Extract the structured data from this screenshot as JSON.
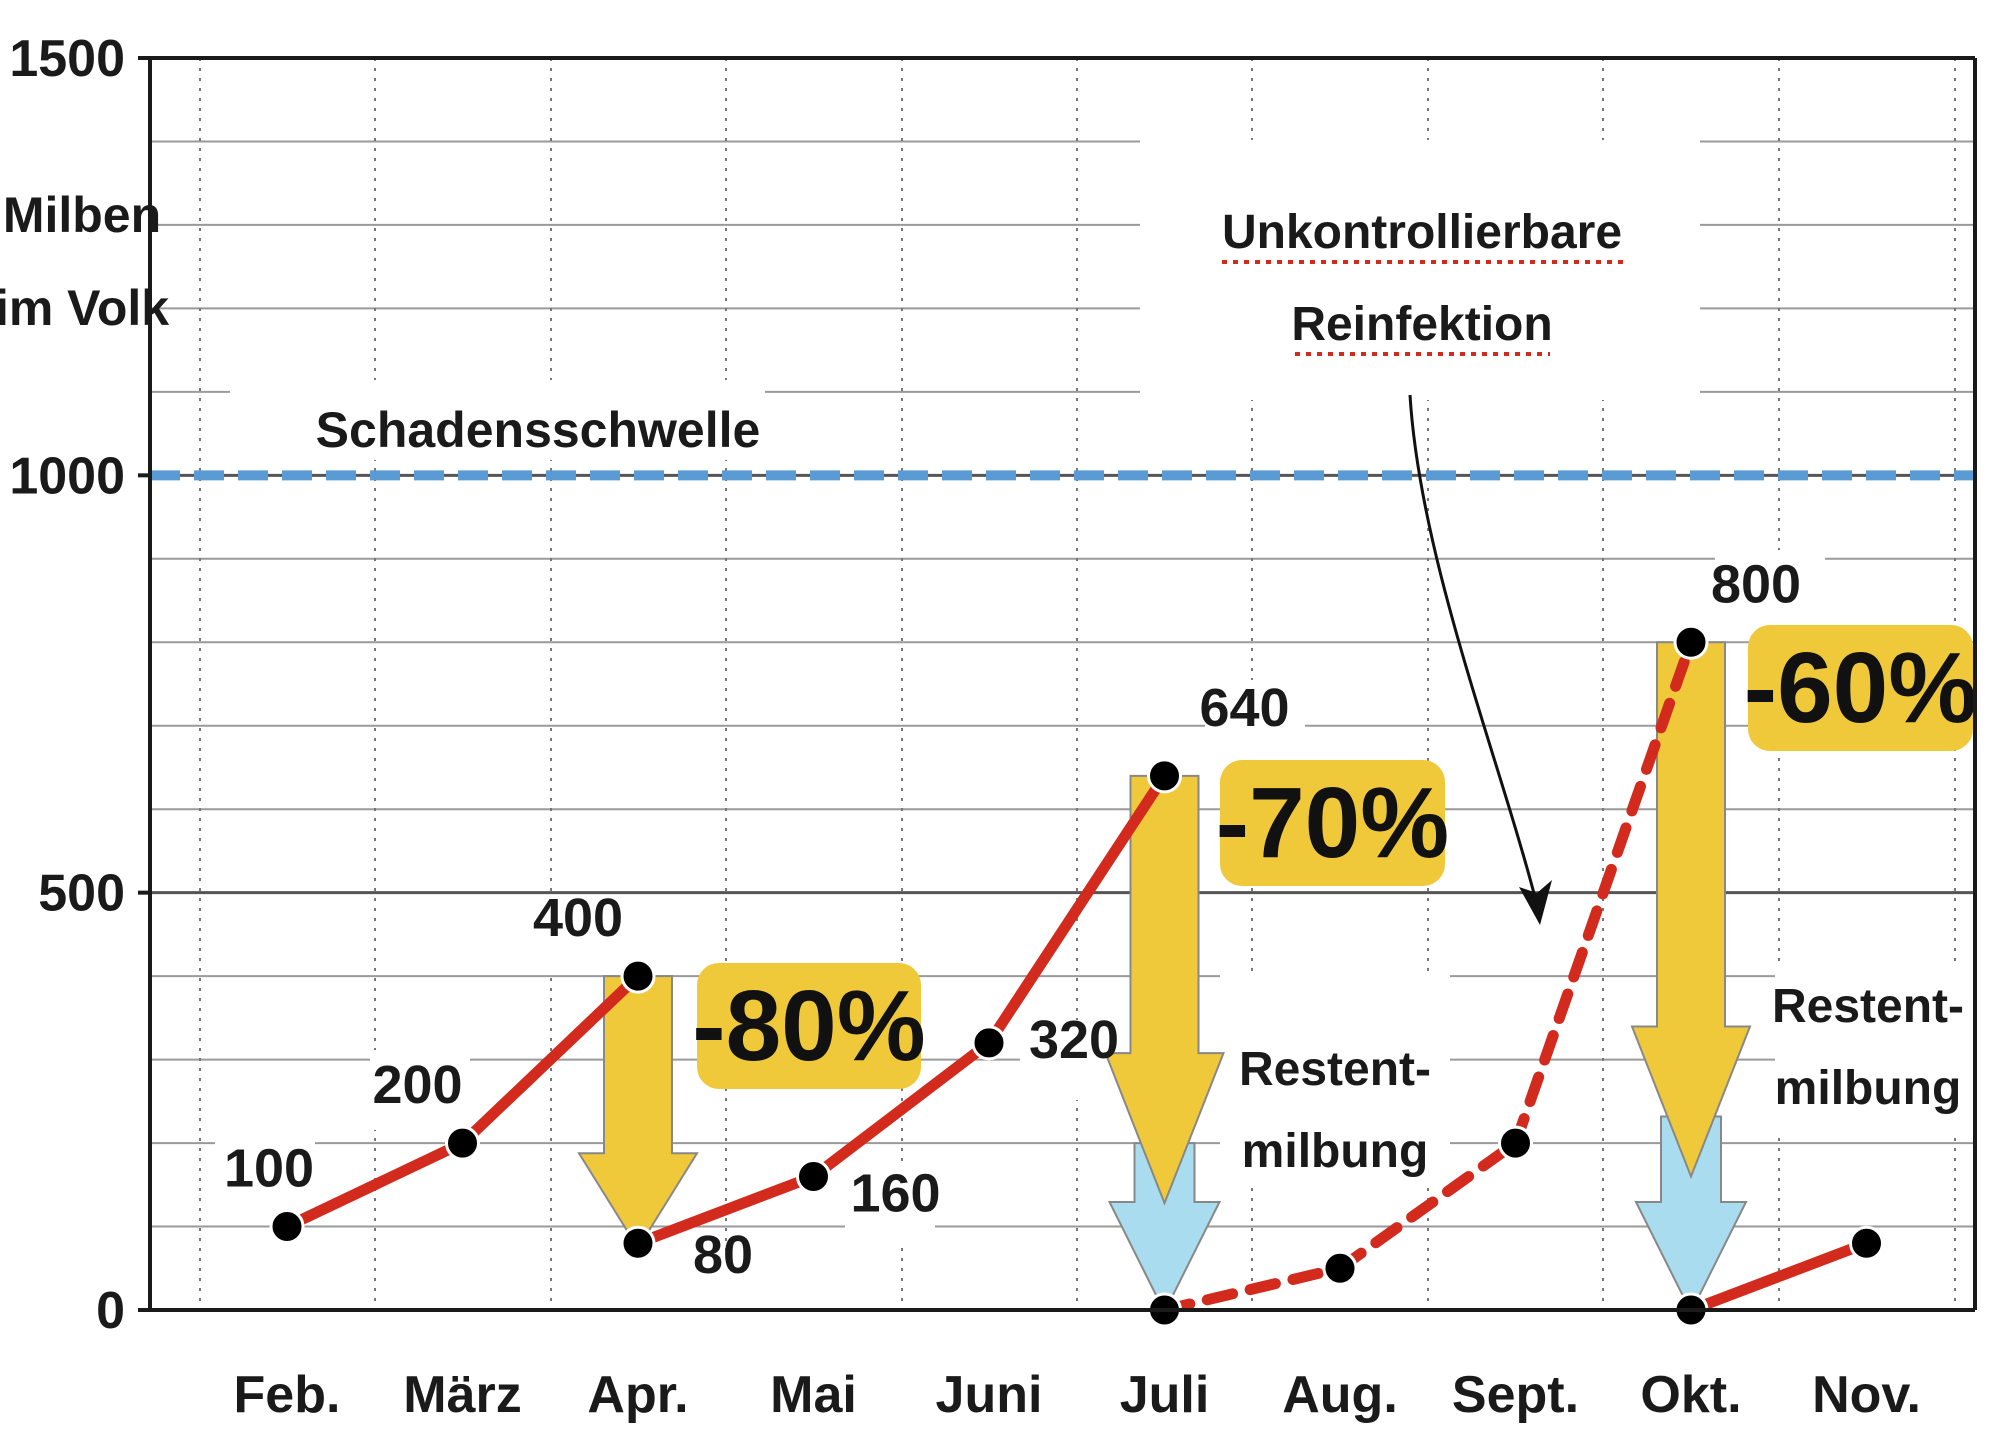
{
  "chart_data": {
    "type": "line",
    "ylabel": "Milben im Volk",
    "ylabel_lines": [
      "Milben",
      "im Volk"
    ],
    "ylim": [
      0,
      1500
    ],
    "yticks": [
      "0",
      "500",
      "1000",
      "1500"
    ],
    "categories": [
      "Feb.",
      "März",
      "Apr.",
      "Mai",
      "Juni",
      "Juli",
      "Aug.",
      "Sept.",
      "Okt.",
      "Nov."
    ],
    "threshold": {
      "label": "Schadensschwelle",
      "value": 1000,
      "color": "#5b9bd5"
    },
    "series": [
      {
        "points": [
          {
            "x": 0,
            "y": 100,
            "label": "100",
            "segment_to_next": "solid"
          },
          {
            "x": 1,
            "y": 200,
            "label": "200",
            "segment_to_next": "solid"
          },
          {
            "x": 2,
            "y": 400,
            "label": "400",
            "segment_to_next": "none"
          },
          {
            "x": 2,
            "y": 80,
            "label": "80",
            "segment_to_next": "solid"
          },
          {
            "x": 3,
            "y": 160,
            "label": "160",
            "segment_to_next": "solid"
          },
          {
            "x": 4,
            "y": 320,
            "label": "320",
            "segment_to_next": "solid"
          },
          {
            "x": 5,
            "y": 640,
            "label": "640",
            "segment_to_next": "none"
          },
          {
            "x": 5,
            "y": 0,
            "label": "",
            "segment_to_next": "dashed"
          },
          {
            "x": 6,
            "y": 50,
            "label": "",
            "segment_to_next": "dashed"
          },
          {
            "x": 7,
            "y": 200,
            "label": "",
            "segment_to_next": "dashed"
          },
          {
            "x": 8,
            "y": 800,
            "label": "800",
            "segment_to_next": "none"
          },
          {
            "x": 8,
            "y": 0,
            "label": "",
            "segment_to_next": "solid"
          },
          {
            "x": 9,
            "y": 80,
            "label": "",
            "segment_to_next": "none"
          }
        ]
      }
    ],
    "treatments": [
      {
        "x": 2,
        "from": 400,
        "to": 80,
        "label": "-80%",
        "rest": false
      },
      {
        "x": 5,
        "from": 640,
        "to": 0,
        "label": "-70%",
        "rest": true,
        "rest_label": [
          "Restent-",
          "milbung"
        ]
      },
      {
        "x": 8,
        "from": 800,
        "to": 0,
        "label": "-60%",
        "rest": true,
        "rest_label": [
          "Restent-",
          "milbung"
        ]
      }
    ],
    "annotation": {
      "text": [
        "Unkontrollierbare",
        "Reinfektion"
      ]
    },
    "grid": true,
    "colors": {
      "line": "#d32a1e",
      "point": "#000000",
      "arrow_yellow": "#f0c93a",
      "arrow_blue": "#a9dcef",
      "badge": "#f0c93a"
    }
  }
}
